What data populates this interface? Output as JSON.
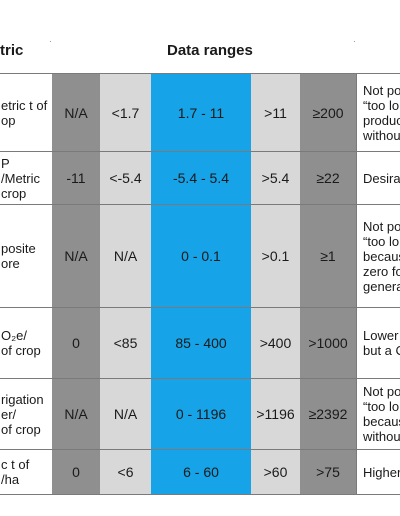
{
  "headers": {
    "metric": "tric",
    "ranges": "Data ranges"
  },
  "rows": [
    {
      "metric": "etric t of\nop",
      "r1": "N/A",
      "r2": "<1.7",
      "r3": "1.7 - 11",
      "r4": ">11",
      "r5": "≥200",
      "note": "Not po\n“too lo\nproduc\nwithou"
    },
    {
      "metric": "P\n/Metric\ncrop",
      "r1": "-11",
      "r2": "<-5.4",
      "r3": "-5.4 - 5.4",
      "r4": ">5.4",
      "r5": "≥22",
      "note": "Desira"
    },
    {
      "metric": "posite\nore",
      "r1": "N/A",
      "r2": "N/A",
      "r3": "0 - 0.1",
      "r4": ">0.1",
      "r5": "≥1",
      "note": "Not po\n“too lo\nbecaus\nzero fo\ngenera"
    },
    {
      "metric": "O₂e/\nof crop",
      "r1": "0",
      "r2": "<85",
      "r3": "85 - 400",
      "r4": ">400",
      "r5": ">1000",
      "note": "Lower\nbut a C"
    },
    {
      "metric": "rigation\ner/\nof crop",
      "r1": "N/A",
      "r2": "N/A",
      "r3": "0 - 1196",
      "r4": ">1196",
      "r5": "≥2392",
      "note": "Not po\n“too lo\nbecaus\nwithou"
    },
    {
      "metric": "c t of\n/ha",
      "r1": "0",
      "r2": "<6",
      "r3": "6 - 60",
      "r4": ">60",
      "r5": ">75",
      "note": "Higher"
    }
  ]
}
